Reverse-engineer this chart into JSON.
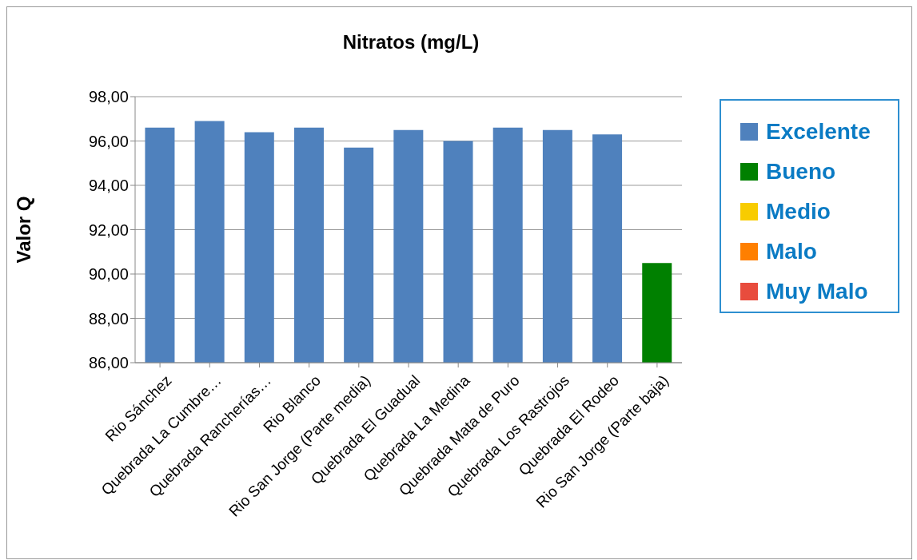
{
  "chart_data": {
    "type": "bar",
    "title": "Nitratos (mg/L)",
    "ylabel": "Valor Q",
    "categories": [
      "Rio Sánchez",
      "Quebrada La Cumbre…",
      "Quebrada Rancherías…",
      "Rio Blanco",
      "Rio San Jorge (Parte media)",
      "Quebrada El Guadual",
      "Quebrada La Medina",
      "Quebrada Mata de Puro",
      "Quebrada Los Rastrojos",
      "Quebrada El Rodeo",
      "Rio San Jorge (Parte baja)"
    ],
    "series": [
      {
        "name": "Excelente",
        "color": "#4f81bd",
        "values": [
          96.6,
          96.9,
          96.4,
          96.6,
          95.7,
          96.5,
          96.0,
          96.6,
          96.5,
          96.3,
          null
        ]
      },
      {
        "name": "Bueno",
        "color": "#008000",
        "values": [
          null,
          null,
          null,
          null,
          null,
          null,
          null,
          null,
          null,
          null,
          90.5
        ]
      },
      {
        "name": "Medio",
        "color": "#f8cc00",
        "values": [
          null,
          null,
          null,
          null,
          null,
          null,
          null,
          null,
          null,
          null,
          null
        ]
      },
      {
        "name": "Malo",
        "color": "#ff7f00",
        "values": [
          null,
          null,
          null,
          null,
          null,
          null,
          null,
          null,
          null,
          null,
          null
        ]
      },
      {
        "name": "Muy Malo",
        "color": "#e84c3d",
        "values": [
          null,
          null,
          null,
          null,
          null,
          null,
          null,
          null,
          null,
          null,
          null
        ]
      }
    ],
    "stacked": true,
    "ylim": [
      86,
      98
    ],
    "yticks": [
      {
        "value": 86,
        "label": "86,00"
      },
      {
        "value": 88,
        "label": "88,00"
      },
      {
        "value": 90,
        "label": "90,00"
      },
      {
        "value": 92,
        "label": "92,00"
      },
      {
        "value": 94,
        "label": "94,00"
      },
      {
        "value": 96,
        "label": "96,00"
      },
      {
        "value": 98,
        "label": "98,00"
      }
    ],
    "grid": "y",
    "legend": "right"
  }
}
